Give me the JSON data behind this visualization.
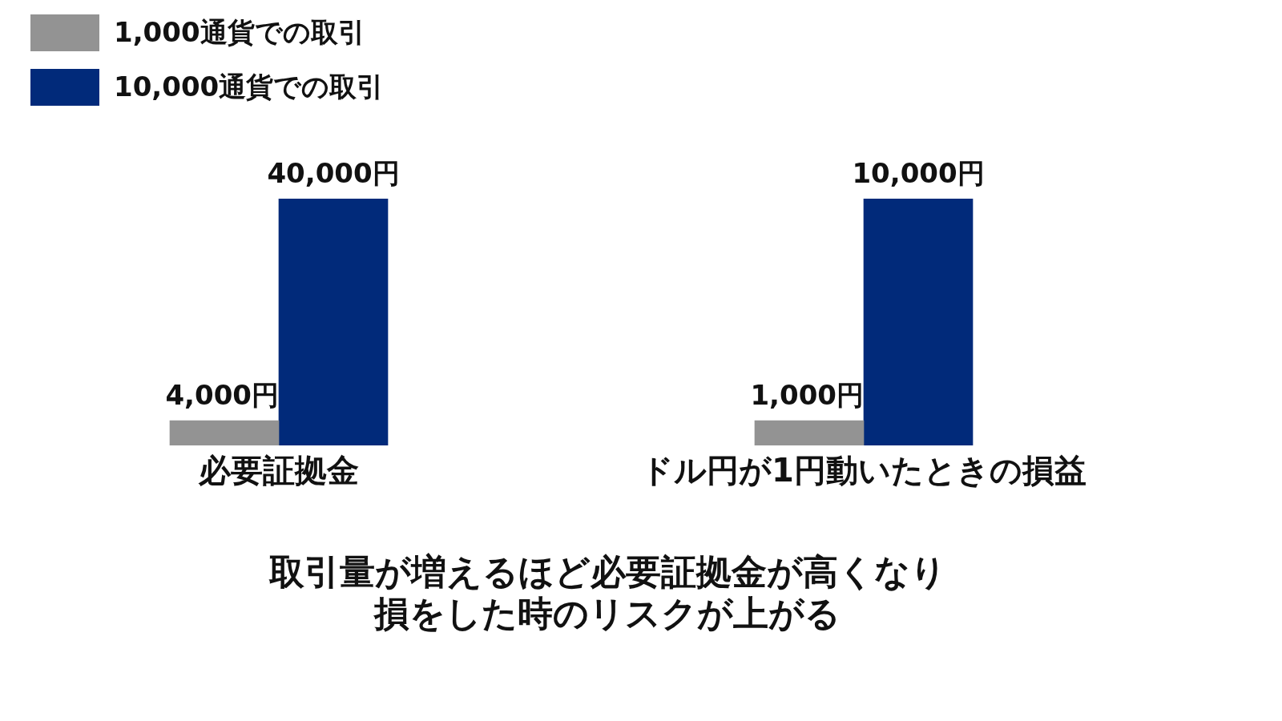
{
  "chart_data": [
    {
      "type": "bar",
      "categories": [
        "必要証拠金"
      ],
      "legend": "top left",
      "series": [
        {
          "name": "1,000通貨での取引",
          "color": "#939393",
          "values": [
            4000
          ],
          "value_labels": [
            "4,000円"
          ]
        },
        {
          "name": "10,000通貨での取引",
          "color": "#012a7a",
          "values": [
            40000
          ],
          "value_labels": [
            "40,000円"
          ]
        }
      ],
      "annotations": [
        "取引量が増えるほど必要証拠金が高くなり",
        "損をした時のリスクが上がる"
      ]
    },
    {
      "type": "bar",
      "categories": [
        "ドル円が1円動いたときの損益"
      ],
      "series": [
        {
          "color": "#939393",
          "values": [
            1000
          ],
          "value_labels": [
            "1,000円"
          ]
        },
        {
          "color": "#012a7a",
          "values": [
            10000
          ],
          "value_labels": [
            "10,000円"
          ]
        }
      ]
    }
  ]
}
